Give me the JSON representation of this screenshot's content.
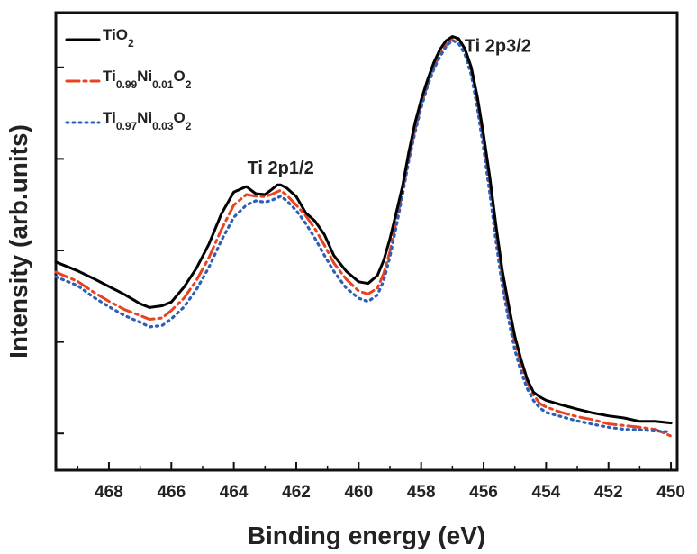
{
  "chart_data": {
    "type": "line",
    "title": "",
    "xlabel": "Binding energy (eV)",
    "ylabel": "Intensity (arb.units)",
    "x_reversed": true,
    "xlim": [
      469.7,
      449.8
    ],
    "ylim": [
      0,
      100
    ],
    "y_tick_labels_shown": false,
    "x_ticks": [
      468,
      466,
      464,
      462,
      460,
      458,
      456,
      454,
      452,
      450
    ],
    "x_tick_labels": [
      "468",
      "466",
      "464",
      "462",
      "460",
      "458",
      "456",
      "454",
      "452",
      "450"
    ],
    "grid": false,
    "legend_position": "top-left",
    "annotations": [
      {
        "text": "Ti 2p1/2",
        "x": 462.5,
        "y": 66
      },
      {
        "text": "Ti 2p3/2",
        "x": 456.9,
        "y": 95
      }
    ],
    "series": [
      {
        "name": "TiO2",
        "legend": {
          "base": "TiO",
          "sub1": "2",
          "mid": "",
          "sub2": "",
          "tail": "",
          "sub3": ""
        },
        "color": "#000000",
        "style": "solid",
        "x": [
          469.7,
          469.0,
          468.5,
          468.0,
          467.5,
          467.0,
          466.7,
          466.3,
          466.0,
          465.6,
          465.2,
          464.8,
          464.4,
          464.0,
          463.6,
          463.3,
          463.0,
          462.8,
          462.6,
          462.5,
          462.3,
          462.0,
          461.7,
          461.4,
          461.1,
          460.8,
          460.4,
          460.0,
          459.7,
          459.4,
          459.2,
          459.0,
          458.8,
          458.6,
          458.4,
          458.2,
          458.0,
          457.8,
          457.6,
          457.4,
          457.2,
          457.0,
          456.8,
          456.6,
          456.4,
          456.2,
          456.0,
          455.8,
          455.6,
          455.4,
          455.2,
          455.0,
          454.8,
          454.6,
          454.4,
          454.2,
          454.0,
          453.5,
          453.0,
          452.5,
          452.0,
          451.5,
          451.0,
          450.5,
          450.0
        ],
        "y": [
          46.4,
          44.3,
          42.5,
          40.6,
          38.7,
          36.5,
          35.6,
          36.0,
          36.9,
          40.4,
          44.9,
          50.6,
          57.8,
          63.0,
          64.3,
          62.6,
          62.4,
          63.5,
          64.7,
          64.7,
          63.9,
          61.9,
          58.1,
          56.1,
          52.9,
          48.0,
          44.2,
          41.7,
          41.3,
          43.2,
          46.8,
          51.9,
          58.0,
          64.3,
          72.3,
          79.3,
          84.9,
          89.5,
          93.6,
          96.8,
          98.9,
          99.9,
          99.4,
          97.0,
          92.7,
          85.6,
          76.6,
          66.4,
          54.9,
          44.4,
          36.2,
          28.8,
          23.3,
          18.5,
          15.5,
          14.4,
          13.6,
          12.5,
          11.5,
          10.6,
          9.9,
          9.4,
          8.6,
          8.6,
          8.2
        ]
      },
      {
        "name": "Ti0.99Ni0.01O2",
        "legend": {
          "base": "Ti",
          "sub1": "0.99",
          "mid": "Ni",
          "sub2": "0.01",
          "tail": "O",
          "sub3": "2"
        },
        "color": "#e8431e",
        "style": "dash-dot",
        "x": [
          469.7,
          469.0,
          468.5,
          468.0,
          467.5,
          467.0,
          466.7,
          466.3,
          466.0,
          465.6,
          465.2,
          464.8,
          464.4,
          464.0,
          463.6,
          463.3,
          463.0,
          462.8,
          462.6,
          462.5,
          462.3,
          462.0,
          461.7,
          461.4,
          461.1,
          460.8,
          460.4,
          460.0,
          459.7,
          459.4,
          459.2,
          459.0,
          458.8,
          458.6,
          458.4,
          458.2,
          458.0,
          457.8,
          457.6,
          457.4,
          457.2,
          457.0,
          456.8,
          456.6,
          456.4,
          456.2,
          456.0,
          455.8,
          455.6,
          455.4,
          455.2,
          455.0,
          454.8,
          454.6,
          454.4,
          454.2,
          454.0,
          453.5,
          453.0,
          452.5,
          452.0,
          451.5,
          451.0,
          450.5,
          450.0
        ],
        "y": [
          44.0,
          41.8,
          39.3,
          37.1,
          35.1,
          33.7,
          32.8,
          33.1,
          34.9,
          37.8,
          42.0,
          47.4,
          54.1,
          59.9,
          62.4,
          62.0,
          61.9,
          62.4,
          63.1,
          63.4,
          62.2,
          59.9,
          57.4,
          54.3,
          50.4,
          46.2,
          42.3,
          39.5,
          38.8,
          40.2,
          43.7,
          48.9,
          55.8,
          63.0,
          71.0,
          77.6,
          83.7,
          88.4,
          92.5,
          95.6,
          97.8,
          99.5,
          99.2,
          97.0,
          92.3,
          84.7,
          75.3,
          64.7,
          53.2,
          42.8,
          34.5,
          27.3,
          22.0,
          17.7,
          14.9,
          12.8,
          12.0,
          10.7,
          9.7,
          9.0,
          8.0,
          7.6,
          7.2,
          6.7,
          5.1
        ]
      },
      {
        "name": "Ti0.97Ni0.03O2",
        "legend": {
          "base": "Ti",
          "sub1": "0.97",
          "mid": "Ni",
          "sub2": "0.03",
          "tail": "O",
          "sub3": "2"
        },
        "color": "#2c5fb8",
        "style": "dotted",
        "x": [
          469.7,
          469.0,
          468.5,
          468.0,
          467.5,
          467.0,
          466.7,
          466.3,
          466.0,
          465.6,
          465.2,
          464.8,
          464.4,
          464.0,
          463.6,
          463.3,
          463.0,
          462.8,
          462.6,
          462.5,
          462.3,
          462.0,
          461.7,
          461.4,
          461.1,
          460.8,
          460.4,
          460.0,
          459.7,
          459.4,
          459.2,
          459.0,
          458.8,
          458.6,
          458.4,
          458.2,
          458.0,
          457.8,
          457.6,
          457.4,
          457.2,
          457.0,
          456.8,
          456.6,
          456.4,
          456.2,
          456.0,
          455.8,
          455.6,
          455.4,
          455.2,
          455.0,
          454.8,
          454.6,
          454.4,
          454.2,
          454.0,
          453.5,
          453.0,
          452.5,
          452.0,
          451.5,
          451.0,
          450.5,
          450.0
        ],
        "y": [
          42.9,
          40.8,
          38.1,
          35.8,
          33.7,
          32.1,
          31.0,
          31.3,
          32.9,
          35.7,
          39.8,
          45.1,
          51.5,
          57.0,
          59.9,
          60.9,
          60.6,
          61.0,
          61.6,
          62.0,
          60.9,
          58.6,
          55.6,
          52.0,
          48.0,
          44.2,
          40.2,
          37.8,
          37.0,
          38.6,
          42.0,
          47.6,
          54.7,
          62.2,
          70.3,
          77.0,
          83.0,
          88.0,
          92.0,
          95.1,
          97.5,
          99.0,
          98.2,
          95.7,
          90.9,
          82.9,
          73.3,
          62.6,
          51.1,
          40.8,
          32.7,
          25.5,
          20.4,
          16.3,
          13.5,
          11.8,
          10.7,
          9.7,
          8.7,
          7.9,
          7.2,
          6.7,
          6.6,
          6.3,
          6.1
        ]
      }
    ]
  }
}
